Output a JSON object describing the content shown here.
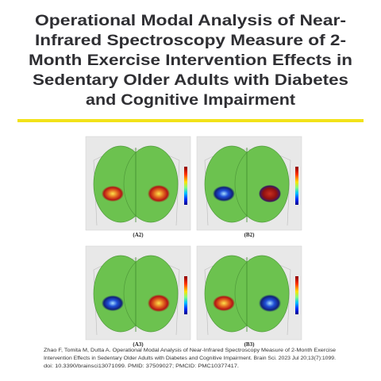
{
  "header": {
    "title_lines": [
      "Operational Modal Analysis of Near-",
      "Infrared Spectroscopy Measure of 2-",
      "Month Exercise Intervention Effects in",
      "Sedentary Older Adults with Diabetes",
      "and Cognitive Impairment"
    ]
  },
  "figure": {
    "panels": [
      {
        "label": "(A2)"
      },
      {
        "label": "(B2)"
      },
      {
        "label": "(A3)"
      },
      {
        "label": "(B3)"
      }
    ]
  },
  "citation": {
    "lines": [
      "Zhao F, Tomita M, Dutta A. Operational Modal Analysis of Near-Infrared Spectroscopy Measure of 2-Month Exercise",
      "Intervention Effects in Sedentary Older Adults with Diabetes and Cognitive Impairment. Brain Sci. 2023 Jul 20;13(7):1099.",
      "doi: 10.3390/brainsci13071099. PMID: 37509027; PMCID: PMC10377417."
    ]
  }
}
